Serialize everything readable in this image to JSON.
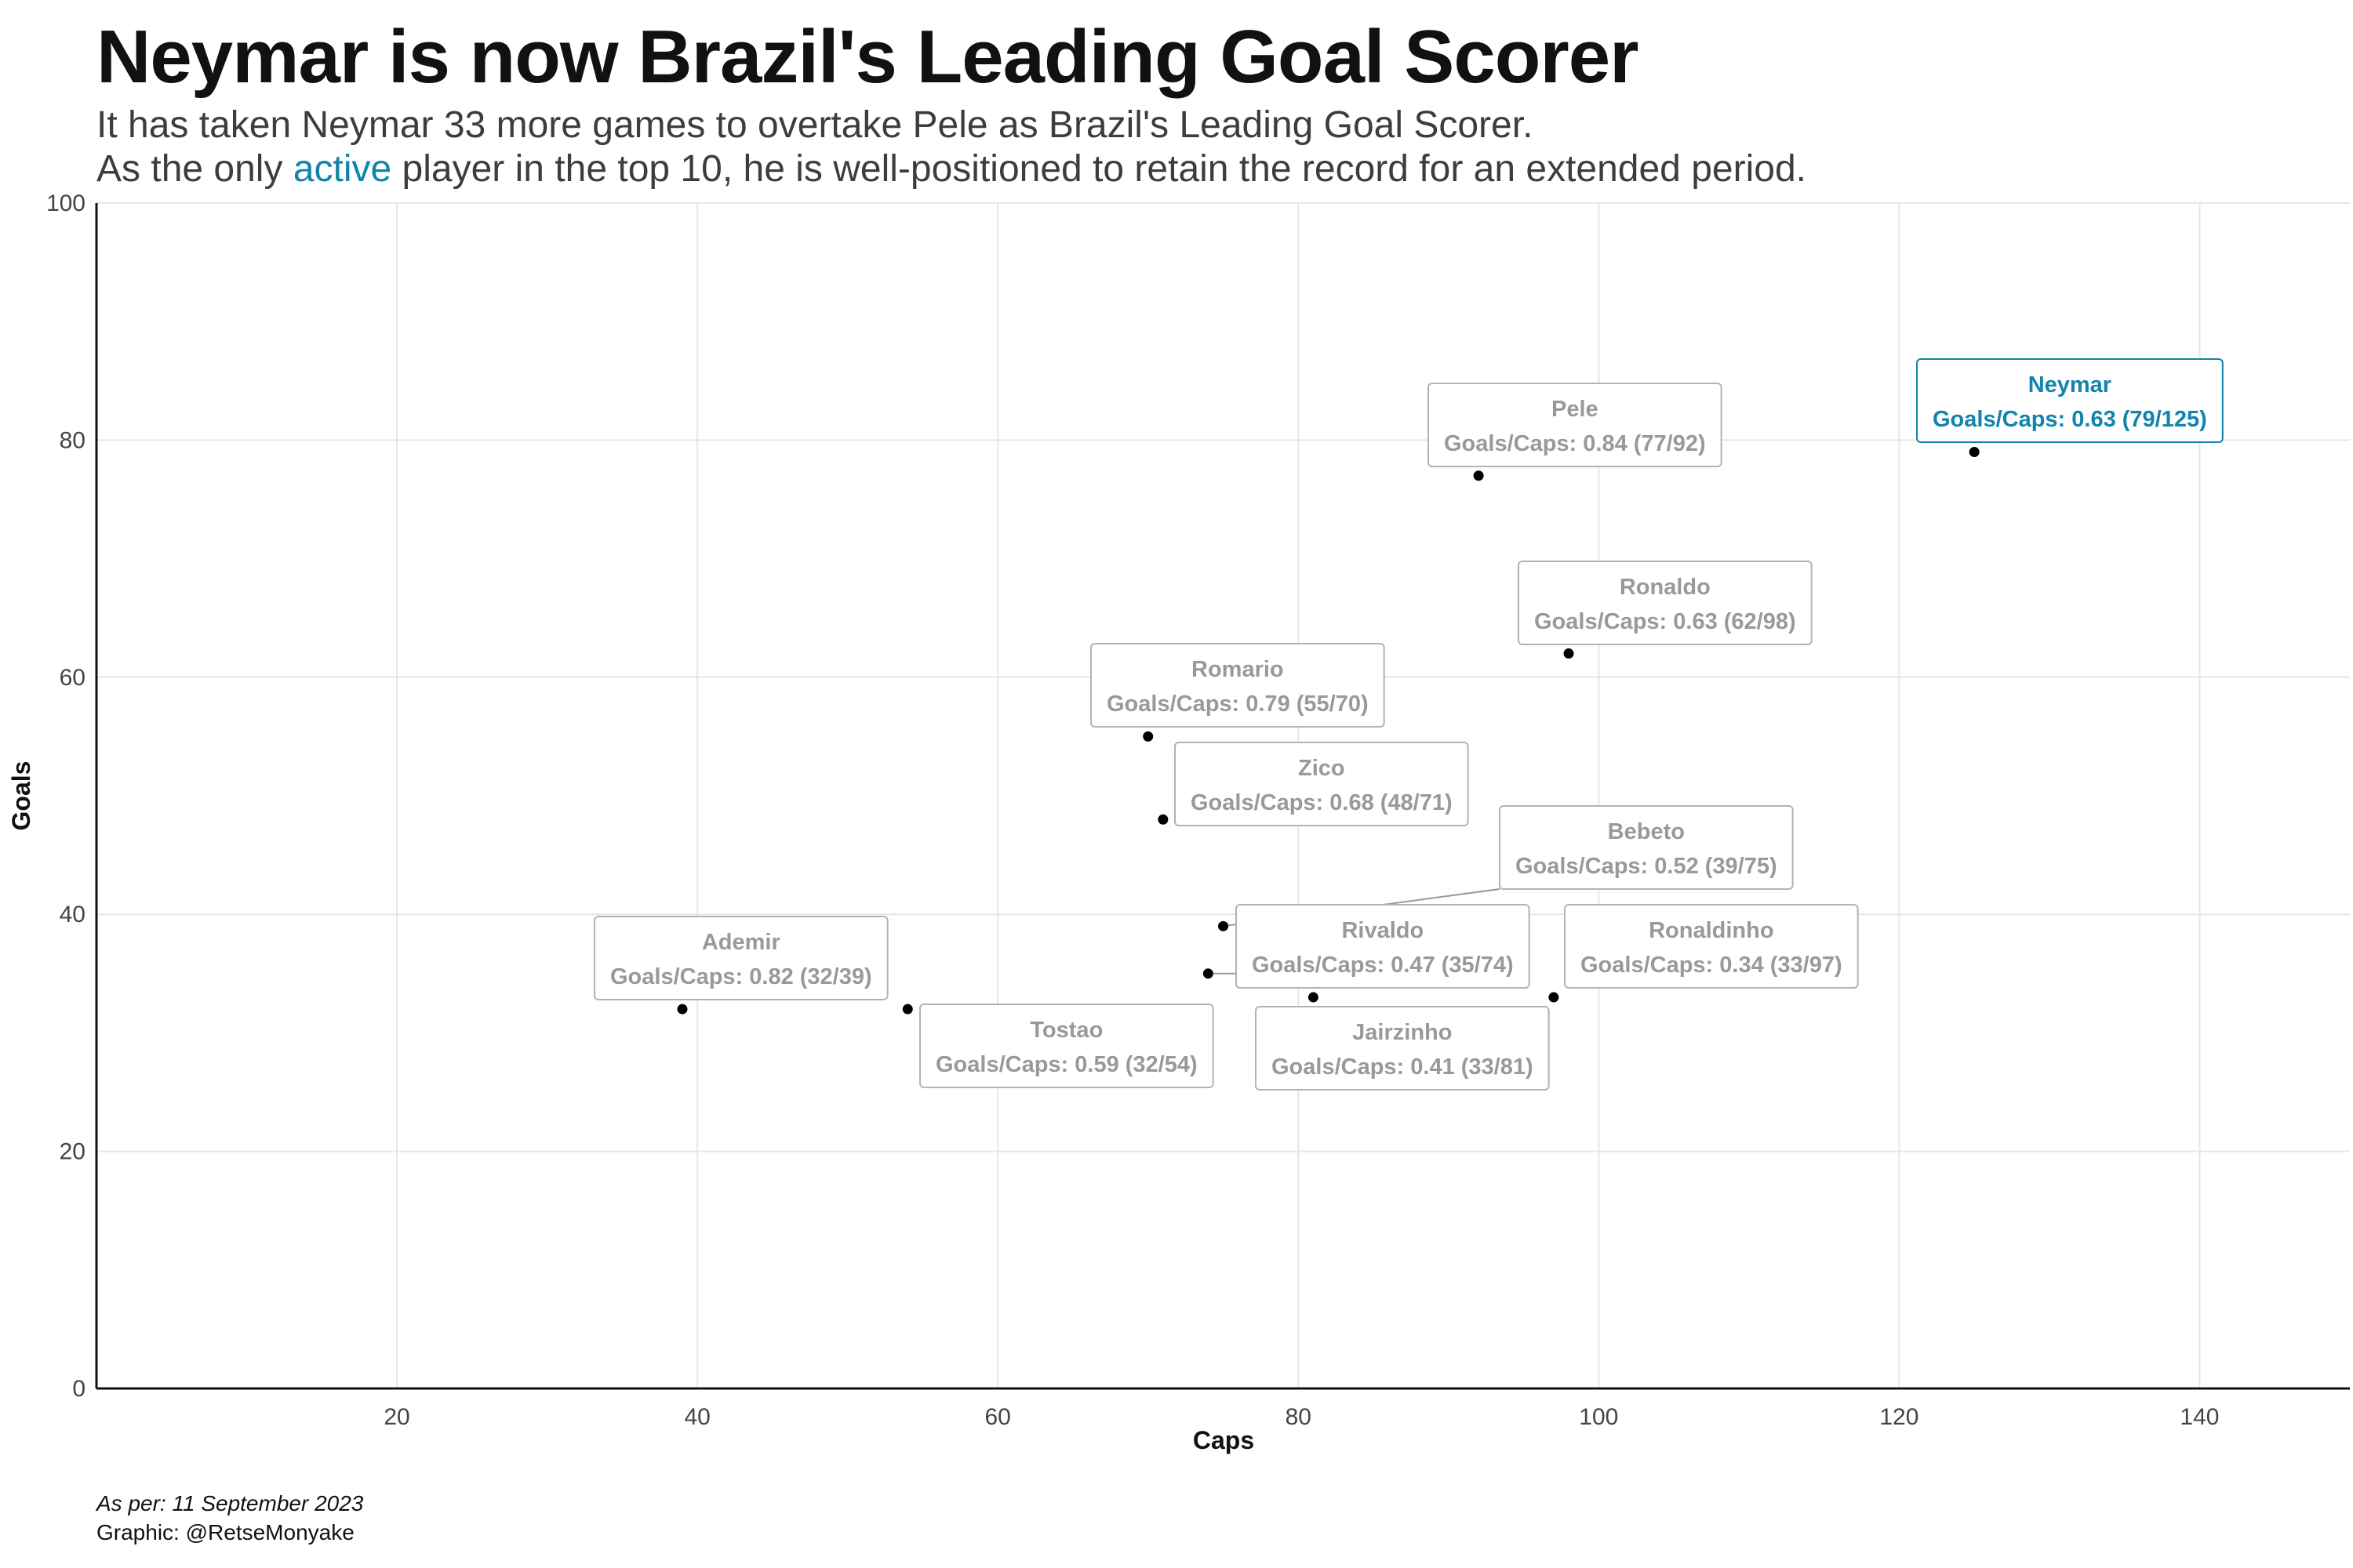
{
  "title": "Neymar is now Brazil's Leading Goal Scorer",
  "subtitle": {
    "line1": "It has taken Neymar 33 more games to overtake Pele as Brazil's Leading Goal Scorer.",
    "line2_before": "As the only ",
    "line2_highlight": "active",
    "line2_after": " player in the top 10, he is well-positioned to retain the record for an extended period."
  },
  "caption": {
    "date": "As per: 11 September 2023",
    "credit": "Graphic: @RetseMonyake"
  },
  "colors": {
    "highlight": "#1184ad",
    "muted_label": "#999999",
    "point": "#000000"
  },
  "chart_data": {
    "type": "scatter",
    "xlabel": "Caps",
    "ylabel": "Goals",
    "xlim": [
      0,
      150
    ],
    "ylim": [
      0,
      100
    ],
    "x_ticks": [
      20,
      40,
      60,
      80,
      100,
      120,
      140
    ],
    "y_ticks": [
      0,
      20,
      40,
      60,
      80,
      100
    ],
    "grid": true,
    "points": [
      {
        "name": "Neymar",
        "x": 125,
        "y": 79,
        "label": "Goals/Caps: 0.63 (79/125)",
        "highlight": true
      },
      {
        "name": "Pele",
        "x": 92,
        "y": 77,
        "label": "Goals/Caps: 0.84 (77/92)",
        "highlight": false
      },
      {
        "name": "Ronaldo",
        "x": 98,
        "y": 62,
        "label": "Goals/Caps: 0.63 (62/98)",
        "highlight": false
      },
      {
        "name": "Romario",
        "x": 70,
        "y": 55,
        "label": "Goals/Caps: 0.79 (55/70)",
        "highlight": false
      },
      {
        "name": "Zico",
        "x": 71,
        "y": 48,
        "label": "Goals/Caps: 0.68 (48/71)",
        "highlight": false
      },
      {
        "name": "Bebeto",
        "x": 75,
        "y": 39,
        "label": "Goals/Caps: 0.52 (39/75)",
        "highlight": false
      },
      {
        "name": "Rivaldo",
        "x": 74,
        "y": 35,
        "label": "Goals/Caps: 0.47 (35/74)",
        "highlight": false
      },
      {
        "name": "Ronaldinho",
        "x": 97,
        "y": 33,
        "label": "Goals/Caps: 0.34 (33/97)",
        "highlight": false
      },
      {
        "name": "Jairzinho",
        "x": 81,
        "y": 33,
        "label": "Goals/Caps: 0.41 (33/81)",
        "highlight": false
      },
      {
        "name": "Ademir",
        "x": 39,
        "y": 32,
        "label": "Goals/Caps: 0.82 (32/39)",
        "highlight": false
      },
      {
        "name": "Tostao",
        "x": 54,
        "y": 32,
        "label": "Goals/Caps: 0.59 (32/54)",
        "highlight": false
      }
    ]
  }
}
